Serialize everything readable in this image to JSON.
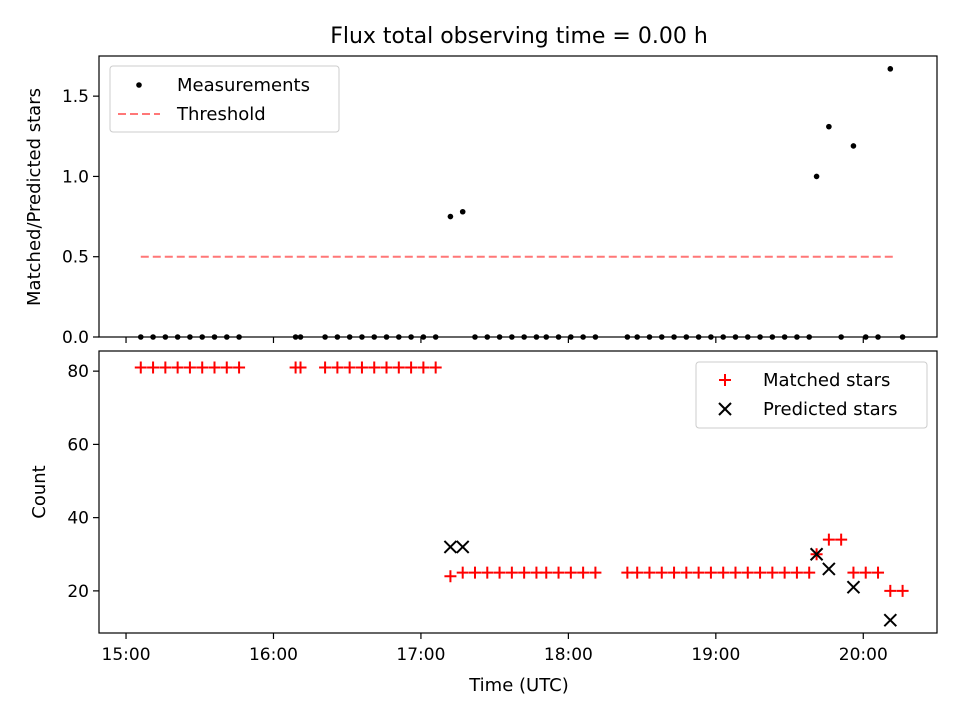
{
  "figure_title": "Flux total observing time = 0.00 h",
  "chart_data": [
    {
      "type": "scatter",
      "panel": "top",
      "title": "Flux total observing time = 0.00 h",
      "xlabel": "",
      "ylabel": "Matched/Predicted stars",
      "x_ticks": [
        "15:00",
        "16:00",
        "17:00",
        "18:00",
        "19:00",
        "20:00"
      ],
      "x_tick_labels_visible": false,
      "y_ticks": [
        "0.0",
        "0.5",
        "1.0",
        "1.5"
      ],
      "xlim": [
        "14:49",
        "20:30"
      ],
      "ylim": [
        0,
        1.75
      ],
      "grid": false,
      "legend_position": "top-left",
      "series": [
        {
          "name": "Measurements",
          "marker": "dot",
          "color": "#000000",
          "points": [
            [
              "15:06",
              0
            ],
            [
              "15:11",
              0
            ],
            [
              "15:16",
              0
            ],
            [
              "15:21",
              0
            ],
            [
              "15:26",
              0
            ],
            [
              "15:31",
              0
            ],
            [
              "15:36",
              0
            ],
            [
              "15:41",
              0
            ],
            [
              "15:46",
              0
            ],
            [
              "16:09",
              0
            ],
            [
              "16:11",
              0
            ],
            [
              "16:21",
              0
            ],
            [
              "16:26",
              0
            ],
            [
              "16:31",
              0
            ],
            [
              "16:36",
              0
            ],
            [
              "16:41",
              0
            ],
            [
              "16:46",
              0
            ],
            [
              "16:51",
              0
            ],
            [
              "16:56",
              0
            ],
            [
              "17:01",
              0
            ],
            [
              "17:06",
              0
            ],
            [
              "17:12",
              0.75
            ],
            [
              "17:17",
              0.78
            ],
            [
              "17:22",
              0
            ],
            [
              "17:27",
              0
            ],
            [
              "17:32",
              0
            ],
            [
              "17:37",
              0
            ],
            [
              "17:42",
              0
            ],
            [
              "17:47",
              0
            ],
            [
              "17:51",
              0
            ],
            [
              "17:56",
              0
            ],
            [
              "18:01",
              0
            ],
            [
              "18:06",
              0
            ],
            [
              "18:11",
              0
            ],
            [
              "18:24",
              0
            ],
            [
              "18:28",
              0
            ],
            [
              "18:33",
              0
            ],
            [
              "18:38",
              0
            ],
            [
              "18:43",
              0
            ],
            [
              "18:48",
              0
            ],
            [
              "18:53",
              0
            ],
            [
              "18:58",
              0
            ],
            [
              "19:03",
              0
            ],
            [
              "19:08",
              0
            ],
            [
              "19:13",
              0
            ],
            [
              "19:18",
              0
            ],
            [
              "19:23",
              0
            ],
            [
              "19:28",
              0
            ],
            [
              "19:33",
              0
            ],
            [
              "19:38",
              0
            ],
            [
              "19:41",
              1.0
            ],
            [
              "19:46",
              1.31
            ],
            [
              "19:51",
              0
            ],
            [
              "19:56",
              1.19
            ],
            [
              "20:01",
              0
            ],
            [
              "20:06",
              0
            ],
            [
              "20:11",
              1.67
            ],
            [
              "20:16",
              0
            ]
          ]
        },
        {
          "name": "Threshold",
          "marker": "dashed-line",
          "color": "#ff7777",
          "points": [
            [
              "15:06",
              0.5
            ],
            [
              "20:13",
              0.5
            ]
          ]
        }
      ]
    },
    {
      "type": "scatter",
      "panel": "bottom",
      "title": "",
      "xlabel": "Time (UTC)",
      "ylabel": "Count",
      "x_ticks": [
        "15:00",
        "16:00",
        "17:00",
        "18:00",
        "19:00",
        "20:00"
      ],
      "y_ticks": [
        "20",
        "40",
        "60",
        "80"
      ],
      "xlim": [
        "14:49",
        "20:30"
      ],
      "ylim": [
        8.5,
        85.5
      ],
      "grid": false,
      "legend_position": "top-right",
      "series": [
        {
          "name": "Matched stars",
          "marker": "plus",
          "color": "#ff0000",
          "points": [
            [
              "15:06",
              81
            ],
            [
              "15:11",
              81
            ],
            [
              "15:16",
              81
            ],
            [
              "15:21",
              81
            ],
            [
              "15:26",
              81
            ],
            [
              "15:31",
              81
            ],
            [
              "15:36",
              81
            ],
            [
              "15:41",
              81
            ],
            [
              "15:46",
              81
            ],
            [
              "16:09",
              81
            ],
            [
              "16:11",
              81
            ],
            [
              "16:21",
              81
            ],
            [
              "16:26",
              81
            ],
            [
              "16:31",
              81
            ],
            [
              "16:36",
              81
            ],
            [
              "16:41",
              81
            ],
            [
              "16:46",
              81
            ],
            [
              "16:51",
              81
            ],
            [
              "16:56",
              81
            ],
            [
              "17:01",
              81
            ],
            [
              "17:06",
              81
            ],
            [
              "17:12",
              24
            ],
            [
              "17:17",
              25
            ],
            [
              "17:22",
              25
            ],
            [
              "17:27",
              25
            ],
            [
              "17:32",
              25
            ],
            [
              "17:37",
              25
            ],
            [
              "17:42",
              25
            ],
            [
              "17:47",
              25
            ],
            [
              "17:51",
              25
            ],
            [
              "17:56",
              25
            ],
            [
              "18:01",
              25
            ],
            [
              "18:06",
              25
            ],
            [
              "18:11",
              25
            ],
            [
              "18:24",
              25
            ],
            [
              "18:28",
              25
            ],
            [
              "18:33",
              25
            ],
            [
              "18:38",
              25
            ],
            [
              "18:43",
              25
            ],
            [
              "18:48",
              25
            ],
            [
              "18:53",
              25
            ],
            [
              "18:58",
              25
            ],
            [
              "19:03",
              25
            ],
            [
              "19:08",
              25
            ],
            [
              "19:13",
              25
            ],
            [
              "19:18",
              25
            ],
            [
              "19:23",
              25
            ],
            [
              "19:28",
              25
            ],
            [
              "19:33",
              25
            ],
            [
              "19:38",
              25
            ],
            [
              "19:41",
              30
            ],
            [
              "19:46",
              34
            ],
            [
              "19:51",
              34
            ],
            [
              "19:56",
              25
            ],
            [
              "20:01",
              25
            ],
            [
              "20:06",
              25
            ],
            [
              "20:11",
              20
            ],
            [
              "20:16",
              20
            ]
          ]
        },
        {
          "name": "Predicted stars",
          "marker": "x",
          "color": "#000000",
          "points": [
            [
              "17:12",
              32
            ],
            [
              "17:17",
              32
            ],
            [
              "19:41",
              30
            ],
            [
              "19:46",
              26
            ],
            [
              "19:56",
              21
            ],
            [
              "20:11",
              12
            ]
          ]
        }
      ]
    }
  ]
}
